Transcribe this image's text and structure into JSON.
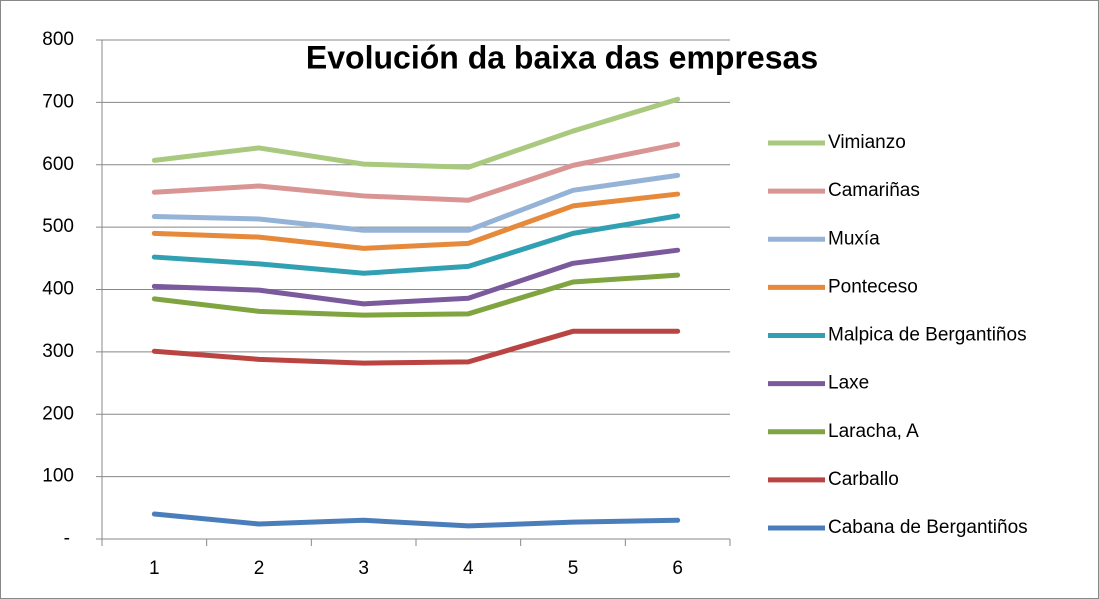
{
  "chart_data": {
    "type": "line",
    "title": "Evolución da baixa das empresas",
    "categories": [
      "1",
      "2",
      "3",
      "4",
      "5",
      "6"
    ],
    "series": [
      {
        "name": "Vimianzo",
        "color": "#a9c97f",
        "values": [
          607,
          627,
          601,
          596,
          654,
          705
        ]
      },
      {
        "name": "Camariñas",
        "color": "#d99594",
        "values": [
          556,
          566,
          550,
          543,
          599,
          633
        ]
      },
      {
        "name": "Muxía",
        "color": "#95b3d7",
        "values": [
          517,
          513,
          495,
          495,
          559,
          583
        ]
      },
      {
        "name": "Ponteceso",
        "color": "#e6893b",
        "values": [
          490,
          484,
          466,
          474,
          534,
          553
        ]
      },
      {
        "name": "Malpica de Bergantiños",
        "color": "#31a0b3",
        "values": [
          452,
          441,
          426,
          437,
          490,
          518
        ]
      },
      {
        "name": "Laxe",
        "color": "#7a5a9c",
        "values": [
          405,
          399,
          377,
          386,
          442,
          463
        ]
      },
      {
        "name": "Laracha, A",
        "color": "#7fa440",
        "values": [
          385,
          365,
          359,
          361,
          412,
          423
        ]
      },
      {
        "name": "Carballo",
        "color": "#b94441",
        "values": [
          301,
          288,
          282,
          284,
          333,
          333
        ]
      },
      {
        "name": "Cabana de Bergantiños",
        "color": "#4a7ebb",
        "values": [
          40,
          24,
          30,
          21,
          27,
          30
        ]
      }
    ],
    "ylim": [
      0,
      800
    ],
    "yticks": [
      {
        "value": 0,
        "label": "-"
      },
      100,
      200,
      300,
      400,
      500,
      600,
      700,
      800
    ],
    "grid": true,
    "legend": "right"
  }
}
